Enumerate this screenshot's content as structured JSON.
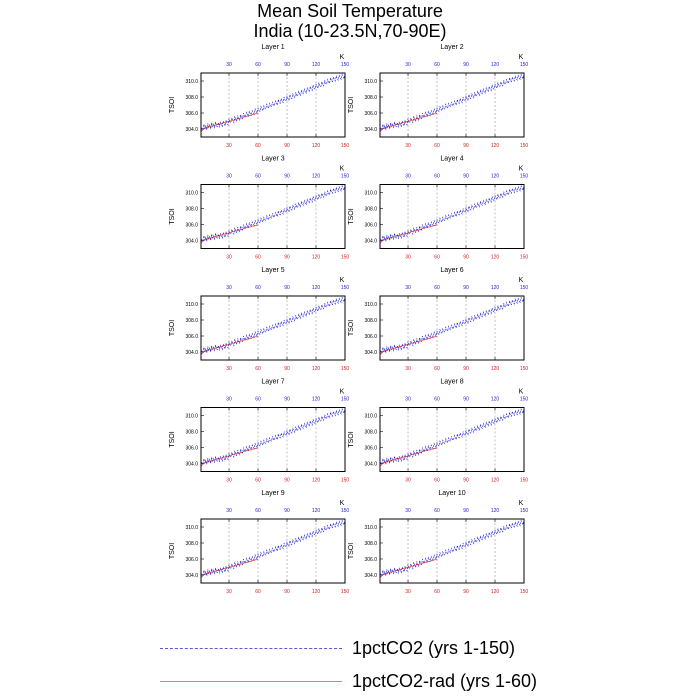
{
  "title_line1": "Mean Soil Temperature",
  "title_line2": "India (10-23.5N,70-90E)",
  "unit_label": "K",
  "legend": [
    {
      "label": "1pctCO2 (yrs 1-150)",
      "color": "#1b1bd6",
      "style": "dashed"
    },
    {
      "label": "1pctCO2-rad (yrs 1-60)",
      "color": "#d41b1b",
      "style": "solid"
    }
  ],
  "chart_data": {
    "type": "line",
    "ylabel": "TSOI",
    "ylim": [
      303.0,
      311.0
    ],
    "yticks": [
      304.0,
      306.0,
      308.0,
      310.0
    ],
    "ytick_labels": [
      "304.0",
      "306.0",
      "308.0",
      "310.0"
    ],
    "xlim": [
      1,
      150
    ],
    "xticks": [
      30,
      60,
      90,
      120,
      150
    ],
    "xtick_labels": [
      "30",
      "60",
      "90",
      "120",
      "150"
    ],
    "grid": "vertical-dashed",
    "panels": [
      {
        "title": "Layer 1"
      },
      {
        "title": "Layer 2"
      },
      {
        "title": "Layer 3"
      },
      {
        "title": "Layer 4"
      },
      {
        "title": "Layer 5"
      },
      {
        "title": "Layer 6"
      },
      {
        "title": "Layer 7"
      },
      {
        "title": "Layer 8"
      },
      {
        "title": "Layer 9"
      },
      {
        "title": "Layer 10"
      }
    ],
    "series": [
      {
        "name": "1pctCO2 (yrs 1-150)",
        "x_start": 1,
        "values": [
          303.6,
          304.1,
          303.9,
          304.6,
          304.0,
          304.4,
          303.9,
          304.7,
          304.2,
          304.5,
          304.0,
          304.8,
          304.3,
          304.6,
          304.1,
          304.9,
          304.4,
          304.3,
          304.8,
          304.2,
          304.9,
          304.5,
          304.3,
          305.0,
          304.6,
          304.4,
          305.1,
          304.7,
          304.5,
          305.3,
          304.8,
          304.9,
          305.4,
          305.0,
          304.8,
          305.6,
          305.1,
          305.0,
          305.7,
          305.3,
          305.1,
          305.8,
          305.4,
          305.3,
          306.0,
          305.6,
          305.5,
          306.1,
          305.8,
          305.6,
          306.2,
          305.9,
          305.8,
          306.3,
          306.0,
          305.9,
          306.5,
          306.2,
          306.0,
          306.6,
          306.3,
          306.2,
          306.8,
          306.5,
          306.3,
          306.9,
          306.6,
          306.5,
          307.1,
          306.8,
          306.6,
          307.2,
          306.9,
          306.8,
          307.4,
          307.0,
          306.9,
          307.5,
          307.2,
          307.0,
          307.7,
          307.3,
          307.2,
          307.8,
          307.5,
          307.3,
          308.0,
          307.6,
          307.5,
          308.1,
          307.8,
          307.6,
          308.3,
          307.9,
          307.8,
          308.4,
          308.1,
          307.9,
          308.6,
          308.2,
          308.1,
          308.7,
          308.4,
          308.2,
          308.9,
          308.5,
          308.4,
          309.0,
          308.7,
          308.5,
          309.2,
          308.8,
          308.7,
          309.3,
          309.0,
          308.8,
          309.5,
          309.1,
          309.0,
          309.6,
          309.3,
          309.1,
          309.8,
          309.4,
          309.3,
          309.9,
          309.6,
          309.4,
          310.1,
          309.7,
          309.6,
          310.2,
          309.9,
          309.7,
          310.4,
          310.0,
          309.9,
          310.5,
          310.2,
          310.0,
          310.6,
          310.3,
          310.1,
          310.7,
          310.4,
          310.2,
          310.8,
          310.5,
          310.3,
          310.9
        ]
      },
      {
        "name": "1pctCO2-rad (yrs 1-60)",
        "x_start": 1,
        "values": [
          303.5,
          303.8,
          303.9,
          304.0,
          304.1,
          304.1,
          304.2,
          304.2,
          304.3,
          304.3,
          304.3,
          304.4,
          304.4,
          304.4,
          304.5,
          304.5,
          304.5,
          304.6,
          304.6,
          304.6,
          304.7,
          304.7,
          304.7,
          304.8,
          304.8,
          304.8,
          304.9,
          304.9,
          304.9,
          305.0,
          305.0,
          305.0,
          305.1,
          305.1,
          305.1,
          305.2,
          305.2,
          305.2,
          305.3,
          305.3,
          305.3,
          305.4,
          305.4,
          305.4,
          305.5,
          305.5,
          305.5,
          305.6,
          305.6,
          305.6,
          305.7,
          305.7,
          305.7,
          305.8,
          305.8,
          305.8,
          305.9,
          305.9,
          305.9,
          306.0
        ]
      }
    ]
  }
}
